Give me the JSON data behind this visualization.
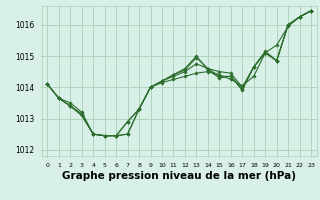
{
  "bg_color": "#d8f0e8",
  "grid_color": "#b0d4bc",
  "line_color": "#2d6e2d",
  "marker_color": "#2d6e2d",
  "xlabel": "Graphe pression niveau de la mer (hPa)",
  "xlabel_fontsize": 7.5,
  "ylim": [
    1011.8,
    1016.6
  ],
  "yticks": [
    1012,
    1013,
    1014,
    1015,
    1016
  ],
  "xlim": [
    -0.5,
    23.5
  ],
  "xticks": [
    0,
    1,
    2,
    3,
    4,
    5,
    6,
    7,
    8,
    9,
    10,
    11,
    12,
    13,
    14,
    15,
    16,
    17,
    18,
    19,
    20,
    21,
    22,
    23
  ],
  "series": [
    [
      1014.1,
      1013.65,
      1013.4,
      1013.1,
      1012.5,
      1012.45,
      1012.45,
      1012.5,
      1013.3,
      1014.0,
      1014.15,
      1014.25,
      1014.35,
      1014.45,
      1014.5,
      1014.4,
      1014.25,
      1014.05,
      1014.35,
      1015.1,
      1015.35,
      1015.95,
      1016.25,
      1016.45
    ],
    [
      1014.1,
      1013.65,
      1013.4,
      1013.1,
      1012.5,
      1012.45,
      1012.45,
      1012.9,
      1013.3,
      1014.0,
      1014.2,
      1014.35,
      1014.5,
      1014.75,
      1014.6,
      1014.5,
      1014.45,
      1014.0,
      1014.65,
      1015.1,
      1014.85,
      1016.0,
      1016.25,
      1016.45
    ],
    [
      1014.1,
      1013.65,
      1013.4,
      1013.15,
      1012.5,
      1012.45,
      1012.45,
      1012.9,
      1013.3,
      1014.0,
      1014.2,
      1014.4,
      1014.55,
      1014.95,
      1014.6,
      1014.35,
      1014.35,
      1013.95,
      1014.65,
      1015.1,
      1014.85,
      1016.0,
      1016.25,
      1016.45
    ],
    [
      1014.1,
      1013.65,
      1013.5,
      1013.2,
      1012.5,
      1012.45,
      1012.45,
      1012.5,
      1013.3,
      1014.0,
      1014.2,
      1014.4,
      1014.6,
      1015.0,
      1014.55,
      1014.3,
      1014.35,
      1013.9,
      1014.65,
      1015.15,
      1014.85,
      1016.0,
      1016.25,
      1016.45
    ]
  ]
}
